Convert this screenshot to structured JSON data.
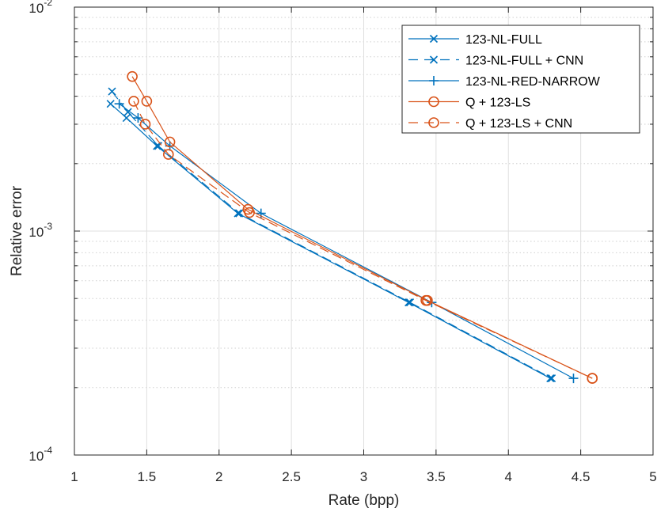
{
  "chart_data": {
    "type": "line",
    "xlabel": "Rate (bpp)",
    "ylabel": "Relative error",
    "xlim": [
      1,
      5
    ],
    "ylim": [
      0.0001,
      0.01
    ],
    "yscale": "log",
    "grid": true,
    "legend_position": "top-right",
    "x_ticks": [
      "1",
      "1.5",
      "2",
      "2.5",
      "3",
      "3.5",
      "4",
      "4.5",
      "5"
    ],
    "y_ticks": [
      {
        "base": "10",
        "exp": "-4",
        "value": 0.0001
      },
      {
        "base": "10",
        "exp": "-3",
        "value": 0.001
      },
      {
        "base": "10",
        "exp": "-2",
        "value": 0.01
      }
    ],
    "series": [
      {
        "name": "123-NL-FULL",
        "color": "#0072BD",
        "dash": "solid",
        "marker": "x",
        "x": [
          1.25,
          1.36,
          1.57,
          2.13,
          3.31,
          4.29
        ],
        "y": [
          0.0037,
          0.0032,
          0.0024,
          0.0012,
          0.00048,
          0.00022
        ]
      },
      {
        "name": "123-NL-FULL + CNN",
        "color": "#0072BD",
        "dash": "dashed",
        "marker": "x",
        "x": [
          1.26,
          1.37,
          1.58,
          2.14,
          3.32,
          4.3
        ],
        "y": [
          0.0042,
          0.0034,
          0.0024,
          0.0012,
          0.00048,
          0.00022
        ]
      },
      {
        "name": "123-NL-RED-NARROW",
        "color": "#0072BD",
        "dash": "solid",
        "marker": "plus",
        "x": [
          1.31,
          1.44,
          1.66,
          2.29,
          3.47,
          4.45
        ],
        "y": [
          0.0037,
          0.0032,
          0.0024,
          0.0012,
          0.00048,
          0.00022
        ]
      },
      {
        "name": "Q + 123-LS",
        "color": "#D95319",
        "dash": "solid",
        "marker": "circle",
        "x": [
          1.4,
          1.5,
          1.66,
          2.2,
          3.44,
          4.58
        ],
        "y": [
          0.0049,
          0.0038,
          0.0025,
          0.00125,
          0.00049,
          0.00022
        ]
      },
      {
        "name": "Q + 123-LS + CNN",
        "color": "#D95319",
        "dash": "dashed",
        "marker": "circle",
        "x": [
          1.41,
          1.49,
          1.65,
          2.21,
          3.43,
          4.58
        ],
        "y": [
          0.0038,
          0.003,
          0.0022,
          0.00121,
          0.00049,
          0.00022
        ]
      }
    ]
  }
}
